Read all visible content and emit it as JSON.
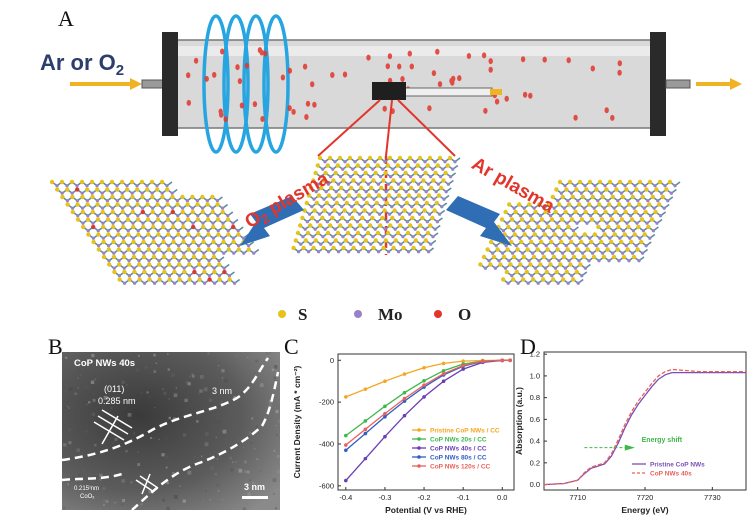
{
  "panelA": {
    "label": "A",
    "gas_label": "Ar or O",
    "gas_subscript": "2",
    "o2_plasma_label": "O",
    "o2_plasma_sub": "2",
    "o2_plasma_rest": " plasma",
    "ar_plasma_label": "Ar plasma",
    "legend": [
      {
        "symbol": "S",
        "color": "#e6c21a"
      },
      {
        "symbol": "Mo",
        "color": "#9b7fc8"
      },
      {
        "symbol": "O",
        "color": "#e2352b"
      }
    ],
    "coil_color": "#27a5e0",
    "arrow_color": "#f0b323",
    "big_arrow_color": "#2f6db5",
    "plasma_text_color": "#e2352b"
  },
  "panelB": {
    "label": "B",
    "title": "CoP NWs 40s",
    "plane": "(011)",
    "spacing": "0.285 nm",
    "amorphous": "3 nm",
    "lower_spacing": "0.215 nm",
    "lower_phase": "CoOₓ",
    "scale_bar": "3 nm"
  },
  "panelC": {
    "label": "C",
    "chart_data": {
      "type": "line",
      "xlabel": "Potential (V vs RHE)",
      "ylabel": "Current Density (mA * cm⁻²)",
      "xlim": [
        -0.42,
        0.03
      ],
      "ylim": [
        -620,
        30
      ],
      "xticks": [
        "-0.4",
        "-0.3",
        "-0.2",
        "-0.1",
        "0.0"
      ],
      "xtick_values": [
        -0.4,
        -0.3,
        -0.2,
        -0.1,
        0.0
      ],
      "yticks": [
        "0",
        "-200",
        "-400",
        "-600"
      ],
      "ytick_values": [
        0,
        -200,
        -400,
        -600
      ],
      "x": [
        -0.4,
        -0.35,
        -0.3,
        -0.25,
        -0.2,
        -0.15,
        -0.1,
        -0.05,
        0.0,
        0.02
      ],
      "series": [
        {
          "name": "Pristine CoP NWs / CC",
          "color": "#f5a623",
          "values": [
            -175,
            -138,
            -100,
            -66,
            -36,
            -15,
            -4,
            -1,
            0,
            0
          ]
        },
        {
          "name": "CoP NWs 20s / CC",
          "color": "#3db84a",
          "values": [
            -360,
            -290,
            -220,
            -155,
            -98,
            -50,
            -18,
            -4,
            0,
            0
          ]
        },
        {
          "name": "CoP NWs 40s / CC",
          "color": "#6a3fb5",
          "values": [
            -575,
            -470,
            -365,
            -265,
            -175,
            -100,
            -42,
            -10,
            -1,
            0
          ]
        },
        {
          "name": "CoP NWs 80s / CC",
          "color": "#2f5ec7",
          "values": [
            -430,
            -350,
            -270,
            -195,
            -128,
            -70,
            -28,
            -6,
            0,
            0
          ]
        },
        {
          "name": "CoP NWs 120s / CC",
          "color": "#e8615a",
          "values": [
            -405,
            -330,
            -255,
            -183,
            -119,
            -64,
            -25,
            -5,
            0,
            0
          ]
        }
      ]
    }
  },
  "panelD": {
    "label": "D",
    "chart_data": {
      "type": "line",
      "xlabel": "Energy (eV)",
      "ylabel": "Absorption (a.u.)",
      "xlim": [
        7705,
        7735
      ],
      "ylim": [
        -0.05,
        1.22
      ],
      "xticks": [
        "7710",
        "7720",
        "7730"
      ],
      "xtick_values": [
        7710,
        7720,
        7730
      ],
      "yticks": [
        "0.0",
        "0.2",
        "0.4",
        "0.6",
        "0.8",
        "1.0",
        "1.2"
      ],
      "ytick_values": [
        0.0,
        0.2,
        0.4,
        0.6,
        0.8,
        1.0,
        1.2
      ],
      "annotation": "Energy shift",
      "x": [
        7705,
        7708,
        7710,
        7711,
        7712,
        7713,
        7714,
        7715,
        7716,
        7717,
        7718,
        7719,
        7720,
        7721,
        7722,
        7723,
        7724,
        7726,
        7728,
        7730,
        7732,
        7735
      ],
      "series": [
        {
          "name": "Pristine CoP NWs",
          "color": "#7b4fb8",
          "dash": false,
          "values": [
            0.0,
            0.01,
            0.04,
            0.1,
            0.15,
            0.17,
            0.19,
            0.26,
            0.38,
            0.52,
            0.64,
            0.74,
            0.82,
            0.9,
            0.97,
            1.01,
            1.03,
            1.03,
            1.03,
            1.03,
            1.03,
            1.03
          ]
        },
        {
          "name": "CoP NWs 40s",
          "color": "#e8615a",
          "dash": true,
          "values": [
            0.0,
            0.01,
            0.04,
            0.11,
            0.16,
            0.18,
            0.2,
            0.28,
            0.41,
            0.55,
            0.67,
            0.77,
            0.85,
            0.93,
            1.0,
            1.04,
            1.06,
            1.05,
            1.04,
            1.04,
            1.04,
            1.04
          ]
        }
      ]
    }
  }
}
